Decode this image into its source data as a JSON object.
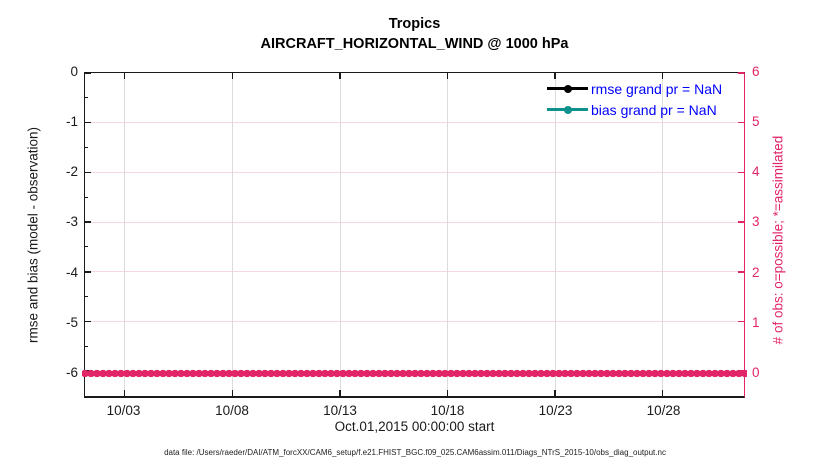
{
  "title": {
    "line1": "Tropics",
    "line2": "AIRCRAFT_HORIZONTAL_WIND @ 1000 hPa"
  },
  "legend": {
    "text_color": "#0000ff",
    "items": [
      {
        "label": "rmse grand pr = NaN",
        "color": "#000000"
      },
      {
        "label": "bias grand pr = NaN",
        "color": "#0f918c"
      }
    ]
  },
  "left_axis": {
    "label": "rmse and bias (model - observation)",
    "ticks": [
      "0",
      "-1",
      "-2",
      "-3",
      "-4",
      "-5",
      "-6"
    ]
  },
  "right_axis": {
    "label": "# of obs: o=possible; *=assimilated",
    "ticks": [
      "6",
      "5",
      "4",
      "3",
      "2",
      "1",
      "0"
    ],
    "color": "#e22468"
  },
  "x_axis": {
    "label": "Oct.01,2015 00:00:00 start",
    "ticks": [
      "10/03",
      "10/08",
      "10/13",
      "10/18",
      "10/23",
      "10/28"
    ]
  },
  "footer": {
    "text": "data file: /Users/raeder/DAI/ATM_forcXX/CAM6_setup/f.e21.FHIST_BGC.f09_025.CAM6assim.011/Diags_NTrS_2015-10/obs_diag_output.nc"
  },
  "chart_data": {
    "type": "line",
    "title": "Tropics",
    "subtitle": "AIRCRAFT_HORIZONTAL_WIND @ 1000 hPa",
    "xlabel": "Oct.01,2015 00:00:00 start",
    "x_tick_labels": [
      "10/03",
      "10/08",
      "10/13",
      "10/18",
      "10/23",
      "10/28"
    ],
    "x_range_dates": [
      "2015-10-01",
      "2015-10-31"
    ],
    "y_left": {
      "label": "rmse and bias (model - observation)",
      "ticks": [
        0,
        -1,
        -2,
        -3,
        -4,
        -5,
        -6
      ],
      "lim": [
        -6.5,
        0
      ]
    },
    "y_right": {
      "label": "# of obs: o=possible; *=assimilated",
      "ticks": [
        0,
        1,
        2,
        3,
        4,
        5,
        6
      ],
      "lim": [
        0,
        6.5
      ],
      "color": "#e22468"
    },
    "grid": true,
    "legend_position": "upper-right-inside",
    "series": [
      {
        "name": "rmse grand pr",
        "axis": "left",
        "color": "#000000",
        "marker": "filled-circle",
        "grand_value": "NaN",
        "values": "NaN (no curve plotted)"
      },
      {
        "name": "bias grand pr",
        "axis": "left",
        "color": "#0f918c",
        "marker": "filled-circle",
        "grand_value": "NaN",
        "values": "NaN (no curve plotted)"
      },
      {
        "name": "# of obs possible (o)",
        "axis": "right",
        "color": "#e22468",
        "marker": "o",
        "constant_value": 0,
        "note": "dense overlapping circle markers at 0 across entire date range"
      },
      {
        "name": "# of obs assimilated (*)",
        "axis": "right",
        "color": "#e22468",
        "marker": "*",
        "constant_value": 0
      }
    ]
  }
}
